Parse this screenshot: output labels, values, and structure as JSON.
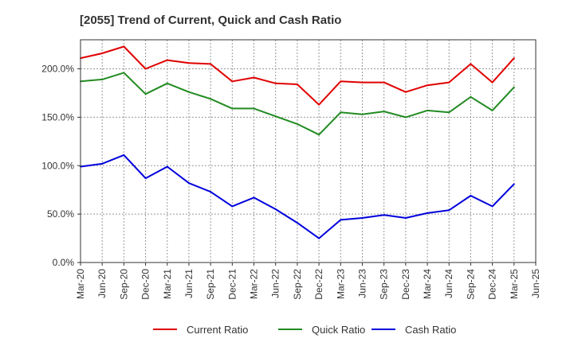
{
  "chart_data": {
    "type": "line",
    "title": "[2055]  Trend of Current, Quick and Cash Ratio",
    "xlabel": "",
    "ylabel": "",
    "ylim": [
      0,
      230
    ],
    "yticks": [
      0,
      50,
      100,
      150,
      200
    ],
    "ytick_labels": [
      "0.0%",
      "50.0%",
      "100.0%",
      "150.0%",
      "200.0%"
    ],
    "x_range": [
      0,
      21
    ],
    "xtick_labels": [
      "Mar-20",
      "Jun-20",
      "Sep-20",
      "Dec-20",
      "Mar-21",
      "Jun-21",
      "Sep-21",
      "Dec-21",
      "Mar-22",
      "Jun-22",
      "Sep-22",
      "Dec-22",
      "Mar-23",
      "Jun-23",
      "Sep-23",
      "Dec-23",
      "Mar-24",
      "Jun-24",
      "Sep-24",
      "Dec-24",
      "Mar-25",
      "Jun-25"
    ],
    "grid": true,
    "legend_position": "bottom",
    "series": [
      {
        "name": "Current Ratio",
        "color": "#e00000",
        "x": [
          0,
          1,
          2,
          3,
          4,
          5,
          6,
          7,
          8,
          9,
          10,
          11,
          12,
          13,
          14,
          15,
          16,
          17,
          18,
          19,
          20
        ],
        "values": [
          211,
          216,
          223,
          200,
          209,
          206,
          205,
          187,
          191,
          185,
          184,
          163,
          187,
          186,
          186,
          176,
          183,
          186,
          205,
          186,
          211
        ]
      },
      {
        "name": "Quick Ratio",
        "color": "#228b22",
        "x": [
          0,
          1,
          2,
          3,
          4,
          5,
          6,
          7,
          8,
          9,
          10,
          11,
          12,
          13,
          14,
          15,
          16,
          17,
          18,
          19,
          20
        ],
        "values": [
          187,
          189,
          196,
          174,
          185,
          176,
          169,
          159,
          159,
          151,
          143,
          132,
          155,
          153,
          156,
          150,
          157,
          155,
          171,
          157,
          181
        ]
      },
      {
        "name": "Cash Ratio",
        "color": "#0000dd",
        "x": [
          0,
          1,
          2,
          3,
          4,
          5,
          6,
          7,
          8,
          9,
          10,
          11,
          12,
          13,
          14,
          15,
          16,
          17,
          18,
          19,
          20
        ],
        "values": [
          99,
          102,
          111,
          87,
          99,
          82,
          73,
          58,
          67,
          55,
          41,
          25,
          44,
          46,
          49,
          46,
          51,
          54,
          69,
          58,
          81
        ]
      }
    ]
  }
}
